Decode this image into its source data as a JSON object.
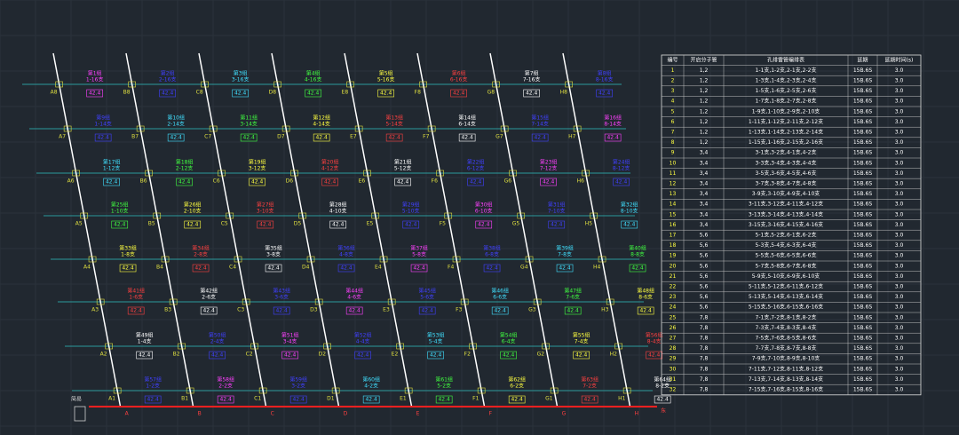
{
  "drawing": {
    "rows": [
      {
        "markers": [
          "A8",
          "B8",
          "C8",
          "D8",
          "E8",
          "F8",
          "G8",
          "H8"
        ],
        "groups": [
          {
            "name": "第1组",
            "holes": "1-16支",
            "charge": "42.4"
          },
          {
            "name": "第2组",
            "holes": "2-16支",
            "charge": "42.4"
          },
          {
            "name": "第3组",
            "holes": "3-16支",
            "charge": "42.4"
          },
          {
            "name": "第4组",
            "holes": "4-16支",
            "charge": "42.4"
          },
          {
            "name": "第5组",
            "holes": "5-16支",
            "charge": "42.4"
          },
          {
            "name": "第6组",
            "holes": "6-16支",
            "charge": "42.4"
          },
          {
            "name": "第7组",
            "holes": "7-16支",
            "charge": "42.4"
          },
          {
            "name": "第8组",
            "holes": "8-16支",
            "charge": "42.4"
          }
        ]
      },
      {
        "markers": [
          "A7",
          "B7",
          "C7",
          "D7",
          "E7",
          "F7",
          "G7",
          "H7"
        ],
        "groups": [
          {
            "name": "第9组",
            "holes": "1-14支",
            "charge": "42.4"
          },
          {
            "name": "第10组",
            "holes": "2-14支",
            "charge": "42.4"
          },
          {
            "name": "第11组",
            "holes": "3-14支",
            "charge": "42.4"
          },
          {
            "name": "第12组",
            "holes": "4-14支",
            "charge": "42.4"
          },
          {
            "name": "第13组",
            "holes": "5-14支",
            "charge": "42.4"
          },
          {
            "name": "第14组",
            "holes": "6-14支",
            "charge": "42.4"
          },
          {
            "name": "第15组",
            "holes": "7-14支",
            "charge": "42.4"
          },
          {
            "name": "第16组",
            "holes": "8-14支",
            "charge": "42.4"
          }
        ]
      },
      {
        "markers": [
          "A6",
          "B6",
          "C6",
          "D6",
          "E6",
          "F6",
          "G6",
          "H6"
        ],
        "groups": [
          {
            "name": "第17组",
            "holes": "1-12支",
            "charge": "42.4"
          },
          {
            "name": "第18组",
            "holes": "2-12支",
            "charge": "42.4"
          },
          {
            "name": "第19组",
            "holes": "3-12支",
            "charge": "42.4"
          },
          {
            "name": "第20组",
            "holes": "4-12支",
            "charge": "42.4"
          },
          {
            "name": "第21组",
            "holes": "5-12支",
            "charge": "42.4"
          },
          {
            "name": "第22组",
            "holes": "6-12支",
            "charge": "42.4"
          },
          {
            "name": "第23组",
            "holes": "7-12支",
            "charge": "42.4"
          },
          {
            "name": "第24组",
            "holes": "8-12支",
            "charge": "42.4"
          }
        ]
      },
      {
        "markers": [
          "A5",
          "B5",
          "C5",
          "D5",
          "E5",
          "F5",
          "G5",
          "H5"
        ],
        "groups": [
          {
            "name": "第25组",
            "holes": "1-10支",
            "charge": "42.4"
          },
          {
            "name": "第26组",
            "holes": "2-10支",
            "charge": "42.4"
          },
          {
            "name": "第27组",
            "holes": "3-10支",
            "charge": "42.4"
          },
          {
            "name": "第28组",
            "holes": "4-10支",
            "charge": "42.4"
          },
          {
            "name": "第29组",
            "holes": "5-10支",
            "charge": "42.4"
          },
          {
            "name": "第30组",
            "holes": "6-10支",
            "charge": "42.4"
          },
          {
            "name": "第31组",
            "holes": "7-10支",
            "charge": "42.4"
          },
          {
            "name": "第32组",
            "holes": "8-10支",
            "charge": "42.4"
          }
        ]
      },
      {
        "markers": [
          "A4",
          "B4",
          "C4",
          "D4",
          "E4",
          "F4",
          "G4",
          "H4"
        ],
        "groups": [
          {
            "name": "第33组",
            "holes": "1-8支",
            "charge": "42.4"
          },
          {
            "name": "第34组",
            "holes": "2-8支",
            "charge": "42.4"
          },
          {
            "name": "第35组",
            "holes": "3-8支",
            "charge": "42.4"
          },
          {
            "name": "第36组",
            "holes": "4-8支",
            "charge": "42.4"
          },
          {
            "name": "第37组",
            "holes": "5-8支",
            "charge": "42.4"
          },
          {
            "name": "第38组",
            "holes": "6-8支",
            "charge": "42.4"
          },
          {
            "name": "第39组",
            "holes": "7-8支",
            "charge": "42.4"
          },
          {
            "name": "第40组",
            "holes": "8-8支",
            "charge": "42.4"
          }
        ]
      },
      {
        "markers": [
          "A3",
          "B3",
          "C3",
          "D3",
          "E3",
          "F3",
          "G3",
          "H3"
        ],
        "groups": [
          {
            "name": "第41组",
            "holes": "1-6支",
            "charge": "42.4"
          },
          {
            "name": "第42组",
            "holes": "2-6支",
            "charge": "42.4"
          },
          {
            "name": "第43组",
            "holes": "3-6支",
            "charge": "42.4"
          },
          {
            "name": "第44组",
            "holes": "4-6支",
            "charge": "42.4"
          },
          {
            "name": "第45组",
            "holes": "5-6支",
            "charge": "42.4"
          },
          {
            "name": "第46组",
            "holes": "6-6支",
            "charge": "42.4"
          },
          {
            "name": "第47组",
            "holes": "7-6支",
            "charge": "42.4"
          },
          {
            "name": "第48组",
            "holes": "8-6支",
            "charge": "42.4"
          }
        ]
      },
      {
        "markers": [
          "A2",
          "B2",
          "C2",
          "D2",
          "E2",
          "F2",
          "G2",
          "H2"
        ],
        "groups": [
          {
            "name": "第49组",
            "holes": "1-4支",
            "charge": "42.4"
          },
          {
            "name": "第50组",
            "holes": "2-4支",
            "charge": "42.4"
          },
          {
            "name": "第51组",
            "holes": "3-4支",
            "charge": "42.4"
          },
          {
            "name": "第52组",
            "holes": "4-4支",
            "charge": "42.4"
          },
          {
            "name": "第53组",
            "holes": "5-4支",
            "charge": "42.4"
          },
          {
            "name": "第54组",
            "holes": "6-4支",
            "charge": "42.4"
          },
          {
            "name": "第55组",
            "holes": "7-4支",
            "charge": "42.4"
          },
          {
            "name": "第56组",
            "holes": "8-4支",
            "charge": "42.4"
          }
        ]
      },
      {
        "markers": [
          "A1",
          "B1",
          "C1",
          "D1",
          "E1",
          "F1",
          "G1",
          "H1"
        ],
        "groups": [
          {
            "name": "第57组",
            "holes": "1-2支",
            "charge": "42.4"
          },
          {
            "name": "第58组",
            "holes": "2-2支",
            "charge": "42.4"
          },
          {
            "name": "第59组",
            "holes": "3-2支",
            "charge": "42.4"
          },
          {
            "name": "第60组",
            "holes": "4-2支",
            "charge": "42.4"
          },
          {
            "name": "第61组",
            "holes": "5-2支",
            "charge": "42.4"
          },
          {
            "name": "第62组",
            "holes": "6-2支",
            "charge": "42.4"
          },
          {
            "name": "第63组",
            "holes": "7-2支",
            "charge": "42.4"
          },
          {
            "name": "第64组",
            "holes": "8-2支",
            "charge": "42.4"
          }
        ]
      }
    ],
    "axis_labels": [
      "A",
      "B",
      "C",
      "D",
      "E",
      "F",
      "G",
      "H"
    ],
    "direction": "东",
    "legend_mark": "简易",
    "palette": [
      "#ff40ff",
      "#4040ff",
      "#40e0ff",
      "#40ff40",
      "#ffff40",
      "#ff4040",
      "#ffffff",
      "#4040ff"
    ]
  },
  "table": {
    "header": [
      "编号",
      "开启分子管",
      "孔排雷管编排表",
      "延期",
      "延期时间(s)"
    ],
    "rows": [
      [
        "1",
        "1,2",
        "1-1支,1-2支,2-1支,2-2支",
        "15B.6S",
        "3.0"
      ],
      [
        "2",
        "1,2",
        "1-3支,1-4支,2-3支,2-4支",
        "15B.6S",
        "3.0"
      ],
      [
        "3",
        "1,2",
        "1-5支,1-6支,2-5支,2-6支",
        "15B.6S",
        "3.0"
      ],
      [
        "4",
        "1,2",
        "1-7支,1-8支,2-7支,2-8支",
        "15B.6S",
        "3.0"
      ],
      [
        "5",
        "1,2",
        "1-9支,1-10支,2-9支,2-10支",
        "15B.6S",
        "3.0"
      ],
      [
        "6",
        "1,2",
        "1-11支,1-12支,2-11支,2-12支",
        "15B.6S",
        "3.0"
      ],
      [
        "7",
        "1,2",
        "1-13支,1-14支,2-13支,2-14支",
        "15B.6S",
        "3.0"
      ],
      [
        "8",
        "1,2",
        "1-15支,1-16支,2-15支,2-16支",
        "15B.6S",
        "3.0"
      ],
      [
        "9",
        "3,4",
        "3-1支,3-2支,4-1支,4-2支",
        "15B.6S",
        "3.0"
      ],
      [
        "10",
        "3,4",
        "3-3支,3-4支,4-3支,4-4支",
        "15B.6S",
        "3.0"
      ],
      [
        "11",
        "3,4",
        "3-5支,3-6支,4-5支,4-6支",
        "15B.6S",
        "3.0"
      ],
      [
        "12",
        "3,4",
        "3-7支,3-8支,4-7支,4-8支",
        "15B.6S",
        "3.0"
      ],
      [
        "13",
        "3,4",
        "3-9支,3-10支,4-9支,4-10支",
        "15B.6S",
        "3.0"
      ],
      [
        "14",
        "3,4",
        "3-11支,3-12支,4-11支,4-12支",
        "15B.6S",
        "3.0"
      ],
      [
        "15",
        "3,4",
        "3-13支,3-14支,4-13支,4-14支",
        "15B.6S",
        "3.0"
      ],
      [
        "16",
        "3,4",
        "3-15支,3-16支,4-15支,4-16支",
        "15B.6S",
        "3.0"
      ],
      [
        "17",
        "5,6",
        "5-1支,5-2支,6-1支,6-2支",
        "15B.6S",
        "3.0"
      ],
      [
        "18",
        "5,6",
        "5-3支,5-4支,6-3支,6-4支",
        "15B.6S",
        "3.0"
      ],
      [
        "19",
        "5,6",
        "5-5支,5-6支,6-5支,6-6支",
        "15B.6S",
        "3.0"
      ],
      [
        "20",
        "5,6",
        "5-7支,5-8支,6-7支,6-8支",
        "15B.6S",
        "3.0"
      ],
      [
        "21",
        "5,6",
        "5-9支,5-10支,6-9支,6-10支",
        "15B.6S",
        "3.0"
      ],
      [
        "22",
        "5,6",
        "5-11支,5-12支,6-11支,6-12支",
        "15B.6S",
        "3.0"
      ],
      [
        "23",
        "5,6",
        "5-13支,5-14支,6-13支,6-14支",
        "15B.6S",
        "3.0"
      ],
      [
        "24",
        "5,6",
        "5-15支,5-16支,6-15支,6-16支",
        "15B.6S",
        "3.0"
      ],
      [
        "25",
        "7,8",
        "7-1支,7-2支,8-1支,8-2支",
        "15B.6S",
        "3.0"
      ],
      [
        "26",
        "7,8",
        "7-3支,7-4支,8-3支,8-4支",
        "15B.6S",
        "3.0"
      ],
      [
        "27",
        "7,8",
        "7-5支,7-6支,8-5支,8-6支",
        "15B.6S",
        "3.0"
      ],
      [
        "28",
        "7,8",
        "7-7支,7-8支,8-7支,8-8支",
        "15B.6S",
        "3.0"
      ],
      [
        "29",
        "7,8",
        "7-9支,7-10支,8-9支,8-10支",
        "15B.6S",
        "3.0"
      ],
      [
        "30",
        "7,8",
        "7-11支,7-12支,8-11支,8-12支",
        "15B.6S",
        "3.0"
      ],
      [
        "31",
        "7,8",
        "7-13支,7-14支,8-13支,8-14支",
        "15B.6S",
        "3.0"
      ],
      [
        "32",
        "7,8",
        "7-15支,7-16支,8-15支,8-16支",
        "15B.6S",
        "3.0"
      ]
    ]
  }
}
